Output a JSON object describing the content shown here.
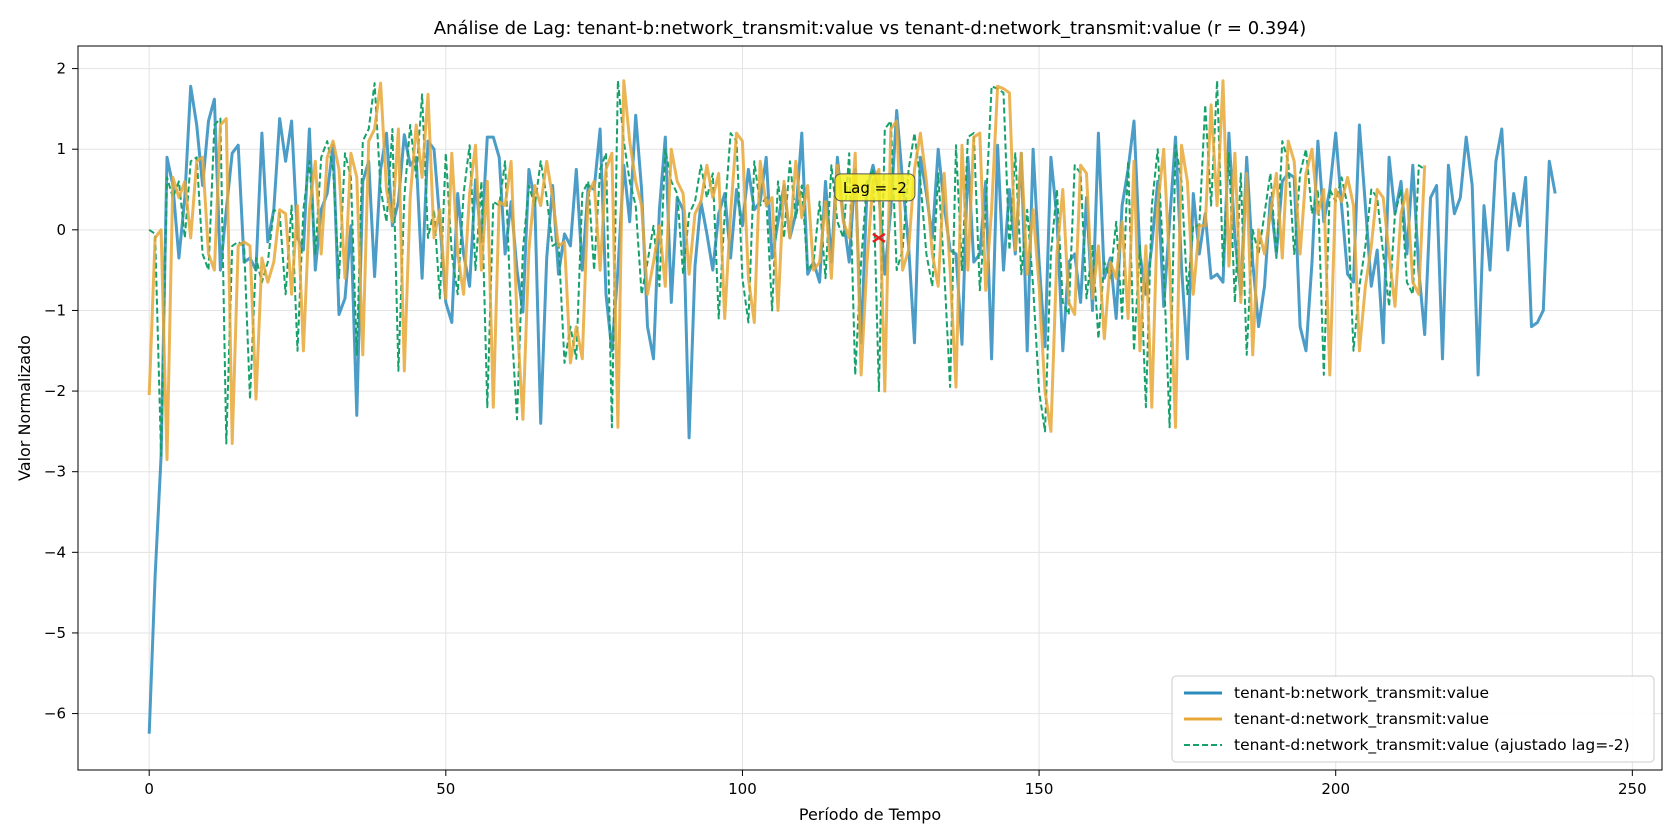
{
  "chart_data": {
    "type": "line",
    "title": "Análise de Lag: tenant-b:network_transmit:value vs tenant-d:network_transmit:value (r = 0.394)",
    "xlabel": "Período de Tempo",
    "ylabel": "Valor Normalizado",
    "xlim": [
      -12,
      255
    ],
    "ylim": [
      -6.7,
      2.28
    ],
    "xticks": [
      0,
      50,
      100,
      150,
      200,
      250
    ],
    "yticks": [
      -6,
      -5,
      -4,
      -3,
      -2,
      -1,
      0,
      1,
      2
    ],
    "grid": true,
    "legend_position": "lower-right",
    "annotation": {
      "text": "Lag = -2",
      "x": 123,
      "y": -0.1
    },
    "series": [
      {
        "name": "tenant-b:network_transmit:value",
        "color": "#2b8cbe",
        "style": "solid",
        "values": [
          -6.25,
          -4.3,
          -2.8,
          0.9,
          0.55,
          -0.35,
          0.4,
          1.78,
          1.3,
          0.55,
          1.35,
          1.62,
          -0.5,
          0.25,
          0.95,
          1.05,
          -0.4,
          -0.35,
          -0.5,
          1.2,
          -0.15,
          0.25,
          1.38,
          0.85,
          1.35,
          -0.1,
          -0.25,
          1.25,
          -0.5,
          0.25,
          0.45,
          1.05,
          -1.05,
          -0.85,
          0.05,
          -2.3,
          0.6,
          0.85,
          -0.58,
          0.75,
          1.2,
          0.05,
          0.35,
          1.18,
          0.8,
          0.9,
          -0.6,
          1.1,
          1.0,
          0.1,
          -0.9,
          -1.15,
          0.45,
          -0.3,
          -0.7,
          0.62,
          -0.15,
          1.15,
          1.15,
          0.9,
          -0.3,
          0.35,
          -0.5,
          -1.02,
          0.75,
          0.35,
          -2.4,
          -0.35,
          0.55,
          -0.55,
          -0.05,
          -0.2,
          0.75,
          -0.5,
          0.55,
          0.5,
          1.25,
          -0.8,
          -1.5,
          -0.5,
          0.8,
          0.1,
          1.42,
          0.5,
          -1.2,
          -1.6,
          0.25,
          1.15,
          -0.9,
          0.4,
          0.25,
          -2.58,
          -0.45,
          0.35,
          -0.05,
          -0.5,
          0.2,
          0.45,
          -0.35,
          0.5,
          0.05,
          0.75,
          0.25,
          0.35,
          0.9,
          -0.35,
          0.1,
          0.55,
          -0.1,
          0.2,
          1.2,
          -0.55,
          -0.4,
          -0.65,
          0.6,
          -0.4,
          0.9,
          0.15,
          -0.4,
          0.75,
          -1.4,
          0.5,
          0.8,
          0.45,
          -0.55,
          0.25,
          1.48,
          0.6,
          -0.2,
          -1.4,
          0.9,
          0.45,
          -0.1,
          1.0,
          0.3,
          -0.25,
          -0.3,
          -1.42,
          0.9,
          -0.4,
          -0.3,
          0.6,
          -1.6,
          1.05,
          -0.5,
          0.5,
          -0.3,
          0.95,
          -1.5,
          1.0,
          -0.4,
          -1.45,
          0.9,
          0.15,
          -1.5,
          -0.4,
          -0.3,
          -0.9,
          0.4,
          -1.0,
          1.2,
          -0.6,
          -0.35,
          -1.1,
          0.3,
          0.75,
          1.35,
          -0.3,
          -0.8,
          -0.2,
          0.6,
          -0.95,
          0.1,
          1.15,
          -0.45,
          -1.6,
          0.45,
          -0.3,
          0.2,
          -0.6,
          -0.55,
          -0.65,
          1.2,
          -0.1,
          -0.8,
          0.9,
          -0.4,
          -1.2,
          -0.7,
          0.4,
          -0.3,
          0.6,
          0.7,
          0.65,
          -1.2,
          -1.5,
          -0.4,
          1.1,
          0.1,
          0.5,
          1.2,
          0.3,
          -0.55,
          -0.65,
          1.3,
          0.3,
          -0.7,
          -0.25,
          -1.4,
          0.9,
          0.2,
          0.6,
          -0.3,
          0.8,
          -0.5,
          -1.3,
          0.4,
          0.55,
          -1.6,
          0.8,
          0.2,
          0.4,
          1.15,
          0.55,
          -1.8,
          0.3,
          -0.5,
          0.85,
          1.25,
          -0.25,
          0.45,
          0.05,
          0.65,
          -1.2,
          -1.15,
          -1.0,
          0.85,
          0.45
        ]
      },
      {
        "name": "tenant-d:network_transmit:value",
        "color": "#e8a838",
        "style": "solid",
        "values": [
          -2.05,
          -0.1,
          0.0,
          -2.85,
          0.65,
          0.4,
          0.6,
          -0.1,
          0.85,
          0.9,
          -0.3,
          -0.5,
          1.3,
          1.38,
          -2.65,
          -0.2,
          -0.15,
          -0.2,
          -2.1,
          -0.35,
          -0.65,
          -0.4,
          0.25,
          0.2,
          -0.8,
          0.3,
          -1.5,
          0.25,
          0.85,
          -0.3,
          0.9,
          1.1,
          0.75,
          -0.6,
          0.95,
          0.65,
          -1.55,
          1.1,
          1.25,
          1.82,
          0.5,
          0.1,
          1.25,
          -1.75,
          0.4,
          1.3,
          0.65,
          1.68,
          -0.1,
          0.25,
          -0.85,
          0.95,
          -0.3,
          -0.8,
          0.45,
          1.05,
          -0.5,
          0.6,
          -2.2,
          0.35,
          0.3,
          0.85,
          -1.1,
          -2.35,
          -0.25,
          0.55,
          0.3,
          0.85,
          0.4,
          -0.2,
          -0.15,
          -1.65,
          -1.2,
          -1.6,
          0.45,
          0.6,
          -0.5,
          0.75,
          0.95,
          -2.45,
          1.85,
          1.1,
          0.6,
          0.3,
          -0.8,
          -0.4,
          0.05,
          -0.7,
          1.0,
          0.6,
          0.45,
          -0.55,
          0.2,
          0.35,
          0.8,
          0.4,
          0.7,
          -1.1,
          0.2,
          1.2,
          1.1,
          -0.6,
          -1.15,
          0.85,
          0.3,
          0.4,
          -1.0,
          0.6,
          -0.1,
          0.85,
          0.15,
          0.55,
          -0.5,
          -0.4,
          0.35,
          -0.6,
          0.8,
          0.1,
          -0.1,
          0.95,
          -1.8,
          -0.4,
          0.6,
          0.75,
          -2.0,
          1.25,
          1.35,
          -0.5,
          -0.25,
          0.75,
          1.2,
          0.6,
          -0.3,
          -0.7,
          0.7,
          -0.5,
          -1.95,
          1.05,
          -0.5,
          1.15,
          1.2,
          -0.75,
          0.25,
          1.78,
          1.75,
          1.7,
          -0.25,
          0.95,
          -0.55,
          0.25,
          -0.7,
          -2.0,
          -2.5,
          -0.3,
          0.5,
          -0.9,
          -1.05,
          0.8,
          0.7,
          -0.85,
          -0.2,
          -1.35,
          -0.4,
          -0.6,
          0.1,
          -1.1,
          0.85,
          -1.5,
          -0.2,
          -2.2,
          0.3,
          1.0,
          -0.45,
          -2.45,
          1.05,
          0.6,
          -0.8,
          0.05,
          0.05,
          1.55,
          0.3,
          1.85,
          -0.45,
          0.95,
          -0.9,
          0.7,
          -1.55,
          0.0,
          -0.3,
          0.2,
          0.7,
          -0.35,
          1.1,
          0.85,
          -0.3,
          0.7,
          1.0,
          0.2,
          0.5,
          -1.8,
          0.5,
          0.35,
          0.65,
          0.3,
          -1.5,
          -0.7,
          -0.2,
          0.5,
          0.4,
          -0.3,
          -0.95,
          0.2,
          0.5,
          -0.65,
          -0.8,
          0.8
        ]
      },
      {
        "name": "tenant-d:network_transmit:value (ajustado lag=-2)",
        "color": "#16a06a",
        "style": "dashed",
        "values": [
          0.0,
          -0.05,
          -2.8,
          0.65,
          0.4,
          0.6,
          -0.1,
          0.85,
          0.9,
          -0.3,
          -0.5,
          1.3,
          1.38,
          -2.65,
          -0.2,
          -0.15,
          -0.2,
          -2.1,
          -0.35,
          -0.65,
          -0.4,
          0.25,
          0.2,
          -0.8,
          0.3,
          -1.5,
          0.25,
          0.85,
          -0.3,
          0.9,
          1.1,
          0.75,
          -0.6,
          0.95,
          0.65,
          -1.55,
          1.1,
          1.25,
          1.82,
          0.5,
          0.1,
          1.25,
          -1.75,
          0.4,
          1.3,
          0.65,
          1.68,
          -0.1,
          0.25,
          -0.85,
          0.95,
          -0.3,
          -0.8,
          0.45,
          1.05,
          -0.5,
          0.6,
          -2.2,
          0.35,
          0.3,
          0.85,
          -1.1,
          -2.35,
          -0.25,
          0.55,
          0.3,
          0.85,
          0.4,
          -0.2,
          -0.15,
          -1.65,
          -1.2,
          -1.6,
          0.45,
          0.6,
          -0.5,
          0.75,
          0.95,
          -2.45,
          1.85,
          1.1,
          0.6,
          0.3,
          -0.8,
          -0.4,
          0.05,
          -0.7,
          1.0,
          0.6,
          0.45,
          -0.55,
          0.2,
          0.35,
          0.8,
          0.4,
          0.7,
          -1.1,
          0.2,
          1.2,
          1.1,
          -0.6,
          -1.15,
          0.85,
          0.3,
          0.4,
          -1.0,
          0.6,
          -0.1,
          0.85,
          0.15,
          0.55,
          -0.5,
          -0.4,
          0.35,
          -0.6,
          0.8,
          0.1,
          -0.1,
          0.95,
          -1.8,
          -0.4,
          0.6,
          0.75,
          -2.0,
          1.25,
          1.35,
          -0.5,
          -0.25,
          0.75,
          1.2,
          0.6,
          -0.3,
          -0.7,
          0.7,
          -0.5,
          -1.95,
          1.05,
          -0.5,
          1.15,
          1.2,
          -0.75,
          0.25,
          1.78,
          1.75,
          1.7,
          -0.25,
          0.95,
          -0.55,
          0.25,
          -0.7,
          -2.0,
          -2.5,
          -0.3,
          0.5,
          -0.9,
          -1.05,
          0.8,
          0.7,
          -0.85,
          -0.2,
          -1.35,
          -0.4,
          -0.6,
          0.1,
          -1.1,
          0.85,
          -1.5,
          -0.2,
          -2.2,
          0.3,
          1.0,
          -0.45,
          -2.45,
          1.05,
          0.6,
          -0.8,
          0.05,
          0.05,
          1.55,
          0.3,
          1.85,
          -0.45,
          0.95,
          -0.9,
          0.7,
          -1.55,
          0.0,
          -0.3,
          0.2,
          0.7,
          -0.35,
          1.1,
          0.85,
          -0.3,
          0.7,
          1.0,
          0.2,
          0.5,
          -1.8,
          0.5,
          0.35,
          0.65,
          0.3,
          -1.5,
          -0.7,
          -0.2,
          0.5,
          0.4,
          -0.3,
          -0.95,
          0.2,
          0.5,
          -0.65,
          -0.8,
          0.8,
          0.75
        ]
      }
    ]
  }
}
